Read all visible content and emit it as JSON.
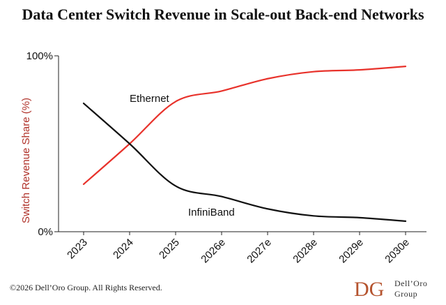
{
  "chart_data": {
    "type": "line",
    "title": "Data Center Switch Revenue in Scale-out Back-end Networks",
    "xlabel": "",
    "ylabel": "Switch Revenue Share (%)",
    "categories": [
      "2023",
      "2024",
      "2025",
      "2026e",
      "2027e",
      "2028e",
      "2029e",
      "2030e"
    ],
    "ylim": [
      0,
      100
    ],
    "yticks": [
      "0%",
      "100%"
    ],
    "grid": false,
    "series": [
      {
        "name": "Ethernet",
        "color": "#e8322b",
        "values": [
          27,
          50,
          74,
          80,
          87,
          91,
          92,
          94
        ]
      },
      {
        "name": "InfiniBand",
        "color": "#111111",
        "values": [
          73,
          50,
          26,
          20,
          13,
          9,
          8,
          6
        ]
      }
    ]
  },
  "footer": {
    "copyright": "©2026 Dell’Oro Group. All Rights Reserved.",
    "logo_text_1": "Dell’Oro",
    "logo_text_2": "Group",
    "logo_color": "#b5542f"
  }
}
